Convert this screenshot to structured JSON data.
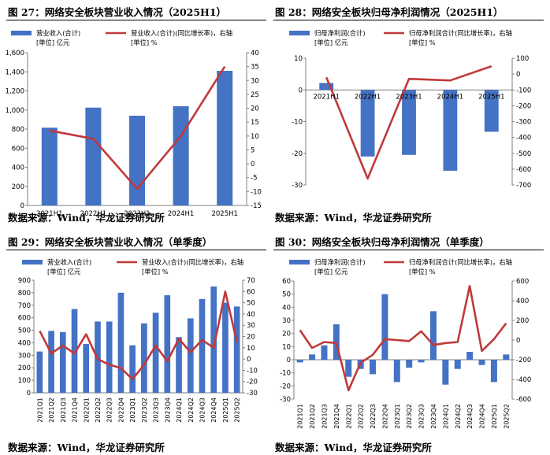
{
  "panels": [
    {
      "title": "图 27：网络安全板块营业收入情况（2025H1）",
      "source": "数据来源：Wind，华龙证券研究所"
    },
    {
      "title": "图 28：网络安全板块归母净利润情况（2025H1）",
      "source": "数据来源：Wind，华龙证券研究所"
    },
    {
      "title": "图 29：网络安全板块营业收入情况（单季度）",
      "source": "数据来源：Wind，华龙证券研究所"
    },
    {
      "title": "图 30：网络安全板块归母净利润情况（单季度）",
      "source": "数据来源：Wind，华龙证券研究所"
    }
  ],
  "colors": {
    "bar": "#4472C4",
    "line": "#C0393B",
    "axis": "#7f7f7f"
  },
  "chart_data": [
    {
      "type": "bar",
      "categories": [
        "2021H1",
        "2022H1",
        "2023H1",
        "2024H1",
        "2025H1"
      ],
      "series": [
        {
          "name": "营业收入(合计)",
          "unit": "[单位] 亿元",
          "axis": "left",
          "kind": "bar",
          "values": [
            815,
            1025,
            940,
            1040,
            1410
          ]
        },
        {
          "name": "营业收入(合计)(同比增长率)，右轴",
          "unit": "[单位] %",
          "axis": "right",
          "kind": "line",
          "values": [
            12,
            9,
            -9,
            10,
            35
          ]
        }
      ],
      "ylim_left": [
        0,
        1600
      ],
      "yticks_left": [
        "0",
        "200",
        "400",
        "600",
        "800",
        "1,000",
        "1,200",
        "1,400",
        "1,600"
      ],
      "ylim_right": [
        -15,
        40
      ],
      "yticks_right": [
        "-15",
        "-10",
        "-5",
        "0",
        "5",
        "10",
        "15",
        "20",
        "25",
        "30",
        "35",
        "40"
      ],
      "grid": false,
      "legend": "top-left"
    },
    {
      "type": "bar",
      "categories": [
        "2021H1",
        "2022H1",
        "2023H1",
        "2024H1",
        "2025H1"
      ],
      "series": [
        {
          "name": "归母净利润(合计)",
          "unit": "[单位] 亿元",
          "axis": "left",
          "kind": "bar",
          "values": [
            2.2,
            -21,
            -20.5,
            -25.5,
            -13.2
          ]
        },
        {
          "name": "归母净利润合计(同比增长率)，右轴",
          "unit": "[单位] %",
          "axis": "right",
          "kind": "line",
          "values": [
            -20,
            -660,
            -30,
            -40,
            50
          ]
        }
      ],
      "ylim_left": [
        -30,
        10
      ],
      "yticks_left": [
        "-30",
        "-20",
        "-10",
        "0",
        "10"
      ],
      "ylim_right": [
        -700,
        100
      ],
      "yticks_right": [
        "-700",
        "-600",
        "-500",
        "-400",
        "-300",
        "-200",
        "-100",
        "0",
        "100"
      ],
      "grid": false,
      "legend": "top-left"
    },
    {
      "type": "bar",
      "categories": [
        "2021Q1",
        "2021Q2",
        "2021Q3",
        "2021Q4",
        "2022Q1",
        "2022Q2",
        "2022Q3",
        "2022Q4",
        "2023Q1",
        "2023Q2",
        "2023Q3",
        "2023Q4",
        "2024Q1",
        "2024Q2",
        "2024Q3",
        "2024Q4",
        "2025Q1",
        "2025Q2"
      ],
      "series": [
        {
          "name": "营业收入(合计)",
          "unit": "[单位] 亿元",
          "axis": "left",
          "kind": "bar",
          "values": [
            330,
            495,
            485,
            670,
            390,
            570,
            570,
            800,
            380,
            555,
            640,
            780,
            445,
            595,
            750,
            850,
            720,
            690
          ]
        },
        {
          "name": "营业收入(合计)(同比增长率)，右轴",
          "unit": "[单位] %",
          "axis": "right",
          "kind": "line",
          "values": [
            25,
            5,
            12,
            5,
            22,
            0,
            -5,
            -8,
            -18,
            -5,
            12,
            -2,
            18,
            6,
            17,
            10,
            60,
            15
          ]
        }
      ],
      "ylim_left": [
        0,
        900
      ],
      "yticks_left": [
        "0",
        "100",
        "200",
        "300",
        "400",
        "500",
        "600",
        "700",
        "800",
        "900"
      ],
      "ylim_right": [
        -30,
        70
      ],
      "yticks_right": [
        "-30",
        "-20",
        "-10",
        "0",
        "10",
        "20",
        "30",
        "40",
        "50",
        "60",
        "70"
      ],
      "grid": false,
      "legend": "top-left"
    },
    {
      "type": "bar",
      "categories": [
        "2021Q1",
        "2021Q2",
        "2021Q3",
        "2021Q4",
        "2022Q1",
        "2022Q2",
        "2022Q3",
        "2022Q4",
        "2023Q1",
        "2023Q2",
        "2023Q3",
        "2023Q4",
        "2024Q1",
        "2024Q2",
        "2024Q3",
        "2024Q4",
        "2025Q1",
        "2025Q2"
      ],
      "series": [
        {
          "name": "归母净利润(合计)",
          "unit": "[单位] 亿元",
          "axis": "left",
          "kind": "bar",
          "values": [
            -2,
            4,
            11,
            27,
            -13,
            -7,
            -11,
            50,
            -17,
            -6,
            -2,
            37,
            -19,
            -7,
            6,
            -4,
            -17,
            4
          ]
        },
        {
          "name": "归母净利润合计(同比增长率)，右轴",
          "unit": "[单位] %",
          "axis": "right",
          "kind": "line",
          "values": [
            100,
            -80,
            -20,
            -30,
            -510,
            -230,
            -150,
            10,
            0,
            -10,
            90,
            -50,
            -30,
            -20,
            550,
            -110,
            10,
            170
          ]
        }
      ],
      "ylim_left": [
        -30,
        60
      ],
      "yticks_left": [
        "-30",
        "-20",
        "-10",
        "0",
        "10",
        "20",
        "30",
        "40",
        "50",
        "60"
      ],
      "ylim_right": [
        -600,
        600
      ],
      "yticks_right": [
        "-600",
        "-400",
        "-200",
        "0",
        "200",
        "400",
        "600"
      ],
      "grid": false,
      "legend": "top-left"
    }
  ]
}
